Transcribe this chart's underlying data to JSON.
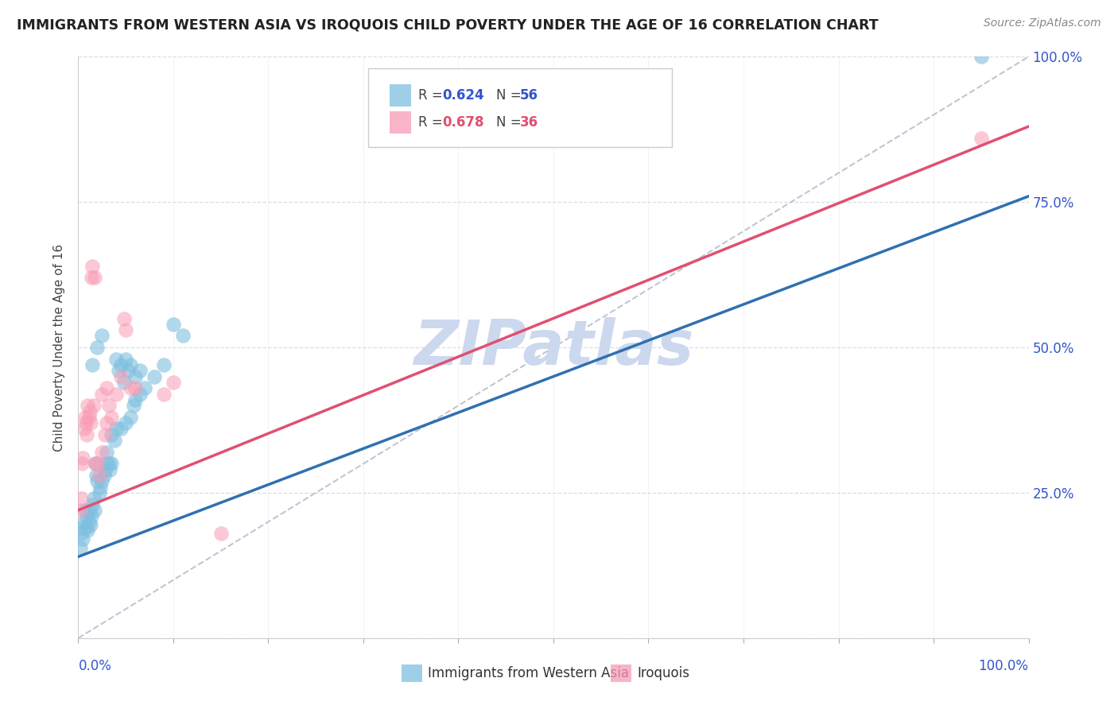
{
  "title": "IMMIGRANTS FROM WESTERN ASIA VS IROQUOIS CHILD POVERTY UNDER THE AGE OF 16 CORRELATION CHART",
  "source": "Source: ZipAtlas.com",
  "ylabel": "Child Poverty Under the Age of 16",
  "blue_R": 0.624,
  "blue_N": 56,
  "pink_R": 0.678,
  "pink_N": 36,
  "blue_scatter": [
    [
      0.2,
      15.5
    ],
    [
      0.3,
      18.0
    ],
    [
      0.4,
      19.0
    ],
    [
      0.5,
      17.0
    ],
    [
      0.6,
      20.0
    ],
    [
      0.7,
      22.0
    ],
    [
      0.8,
      19.0
    ],
    [
      0.9,
      21.0
    ],
    [
      1.0,
      18.5
    ],
    [
      1.1,
      20.0
    ],
    [
      1.2,
      22.0
    ],
    [
      1.3,
      19.5
    ],
    [
      1.4,
      21.0
    ],
    [
      1.5,
      23.0
    ],
    [
      1.6,
      24.0
    ],
    [
      1.7,
      22.0
    ],
    [
      1.8,
      30.0
    ],
    [
      1.9,
      28.0
    ],
    [
      2.0,
      27.0
    ],
    [
      2.2,
      25.0
    ],
    [
      2.3,
      26.0
    ],
    [
      2.5,
      27.0
    ],
    [
      2.7,
      28.0
    ],
    [
      2.8,
      29.0
    ],
    [
      3.0,
      30.0
    ],
    [
      3.2,
      30.0
    ],
    [
      3.3,
      29.0
    ],
    [
      3.5,
      30.0
    ],
    [
      4.0,
      48.0
    ],
    [
      4.2,
      46.0
    ],
    [
      4.5,
      47.0
    ],
    [
      4.8,
      44.0
    ],
    [
      5.0,
      48.0
    ],
    [
      5.2,
      46.0
    ],
    [
      5.5,
      47.0
    ],
    [
      6.0,
      45.0
    ],
    [
      6.5,
      46.0
    ],
    [
      1.5,
      47.0
    ],
    [
      2.0,
      50.0
    ],
    [
      2.5,
      52.0
    ],
    [
      3.0,
      32.0
    ],
    [
      3.5,
      35.0
    ],
    [
      3.8,
      34.0
    ],
    [
      4.0,
      36.0
    ],
    [
      4.5,
      36.0
    ],
    [
      5.0,
      37.0
    ],
    [
      5.5,
      38.0
    ],
    [
      5.8,
      40.0
    ],
    [
      6.0,
      41.0
    ],
    [
      6.5,
      42.0
    ],
    [
      7.0,
      43.0
    ],
    [
      8.0,
      45.0
    ],
    [
      9.0,
      47.0
    ],
    [
      95.0,
      100.0
    ],
    [
      10.0,
      54.0
    ],
    [
      11.0,
      52.0
    ]
  ],
  "pink_scatter": [
    [
      0.2,
      22.0
    ],
    [
      0.3,
      24.0
    ],
    [
      0.4,
      30.0
    ],
    [
      0.5,
      31.0
    ],
    [
      0.6,
      36.0
    ],
    [
      0.7,
      38.0
    ],
    [
      0.8,
      37.0
    ],
    [
      0.9,
      35.0
    ],
    [
      1.0,
      40.0
    ],
    [
      1.1,
      38.0
    ],
    [
      1.2,
      39.0
    ],
    [
      1.3,
      37.0
    ],
    [
      1.4,
      62.0
    ],
    [
      1.5,
      64.0
    ],
    [
      1.6,
      40.0
    ],
    [
      1.7,
      62.0
    ],
    [
      1.8,
      30.0
    ],
    [
      2.0,
      30.0
    ],
    [
      2.2,
      28.0
    ],
    [
      2.5,
      32.0
    ],
    [
      2.8,
      35.0
    ],
    [
      3.0,
      37.0
    ],
    [
      3.2,
      40.0
    ],
    [
      3.5,
      38.0
    ],
    [
      4.0,
      42.0
    ],
    [
      4.5,
      45.0
    ],
    [
      4.8,
      55.0
    ],
    [
      5.0,
      53.0
    ],
    [
      5.5,
      43.0
    ],
    [
      6.0,
      43.0
    ],
    [
      9.0,
      42.0
    ],
    [
      10.0,
      44.0
    ],
    [
      15.0,
      18.0
    ],
    [
      2.5,
      42.0
    ],
    [
      3.0,
      43.0
    ],
    [
      95.0,
      86.0
    ]
  ],
  "blue_line": {
    "x0": 0.0,
    "y0": 14.0,
    "x1": 100.0,
    "y1": 76.0
  },
  "pink_line": {
    "x0": 0.0,
    "y0": 22.0,
    "x1": 100.0,
    "y1": 88.0
  },
  "diag_line": {
    "x0": 0.0,
    "y0": 0.0,
    "x1": 100.0,
    "y1": 100.0
  },
  "xlim": [
    0.0,
    100.0
  ],
  "ylim": [
    0.0,
    100.0
  ],
  "yticks": [
    0.0,
    25.0,
    50.0,
    75.0,
    100.0
  ],
  "ytick_labels": [
    "",
    "25.0%",
    "50.0%",
    "75.0%",
    "100.0%"
  ],
  "blue_color": "#7FBFDF",
  "pink_color": "#F99BB5",
  "blue_line_color": "#3070B0",
  "pink_line_color": "#E05070",
  "diag_line_color": "#b0b8c8",
  "grid_color": "#d8dde8",
  "title_color": "#222222",
  "axis_label_color": "#3355cc",
  "source_color": "#888888",
  "watermark_color": "#ccd8ee"
}
